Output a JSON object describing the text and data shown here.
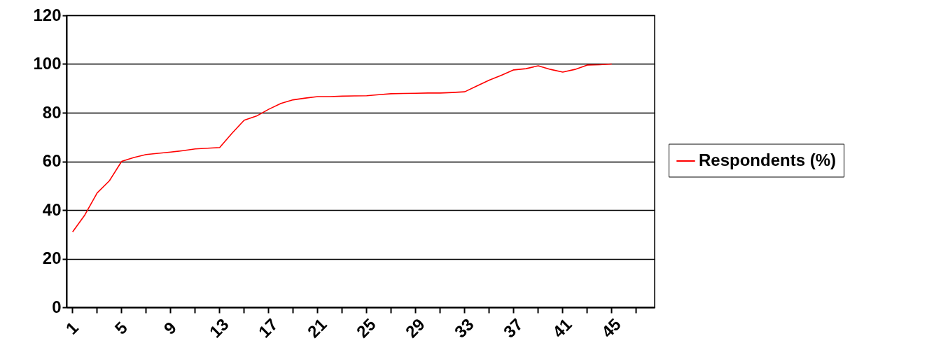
{
  "chart_data": {
    "type": "line",
    "categories": [
      "1",
      null,
      null,
      null,
      "5",
      null,
      null,
      null,
      "9",
      null,
      null,
      null,
      "13",
      null,
      null,
      null,
      "17",
      null,
      null,
      null,
      "21",
      null,
      null,
      null,
      "25",
      null,
      null,
      null,
      "29",
      null,
      null,
      null,
      "33",
      null,
      null,
      null,
      "37",
      null,
      null,
      null,
      "41",
      null,
      null,
      null,
      "45",
      null,
      null,
      null
    ],
    "series": [
      {
        "name": "Respondents (%)",
        "color": "#ff0000",
        "values": [
          31,
          38,
          47,
          52,
          60,
          61.6,
          62.8,
          63.3,
          63.8,
          64.4,
          65.1,
          65.4,
          65.7,
          71.5,
          76.9,
          78.6,
          81.4,
          83.8,
          85.3,
          86,
          86.6,
          86.6,
          86.8,
          86.9,
          87,
          87.4,
          87.8,
          87.9,
          88,
          88.1,
          88.1,
          88.3,
          88.6,
          91,
          93.4,
          95.4,
          97.6,
          98.1,
          99.3,
          97.8,
          96.7,
          97.8,
          99.6,
          99.7,
          100,
          null,
          null,
          null
        ]
      }
    ],
    "ylim": [
      0,
      120
    ],
    "yticks": [
      0,
      20,
      40,
      60,
      80,
      100,
      120
    ],
    "grid": "y",
    "legend": "right",
    "marker": "none",
    "line_style": "solid"
  }
}
